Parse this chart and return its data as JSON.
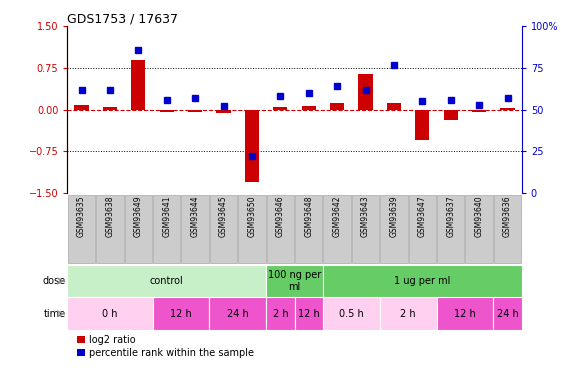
{
  "title": "GDS1753 / 17637",
  "samples": [
    "GSM93635",
    "GSM93638",
    "GSM93649",
    "GSM93641",
    "GSM93644",
    "GSM93645",
    "GSM93650",
    "GSM93646",
    "GSM93648",
    "GSM93642",
    "GSM93643",
    "GSM93639",
    "GSM93647",
    "GSM93637",
    "GSM93640",
    "GSM93636"
  ],
  "log2_ratio": [
    0.08,
    0.05,
    0.9,
    -0.05,
    -0.04,
    -0.06,
    -1.3,
    0.05,
    0.07,
    0.12,
    0.65,
    0.12,
    -0.55,
    -0.18,
    -0.05,
    0.03
  ],
  "pct_rank": [
    62,
    62,
    86,
    56,
    57,
    52,
    22,
    58,
    60,
    64,
    62,
    77,
    55,
    56,
    53,
    57
  ],
  "ylim": [
    -1.5,
    1.5
  ],
  "yticks_left": [
    -1.5,
    -0.75,
    0,
    0.75,
    1.5
  ],
  "yticks_right": [
    0,
    25,
    50,
    75,
    100
  ],
  "hlines": [
    0.75,
    -0.75
  ],
  "dose_groups": [
    {
      "label": "control",
      "start": 0,
      "end": 7,
      "color": "#C8F0C8"
    },
    {
      "label": "100 ng per\nml",
      "start": 7,
      "end": 9,
      "color": "#66CC66"
    },
    {
      "label": "1 ug per ml",
      "start": 9,
      "end": 16,
      "color": "#66CC66"
    }
  ],
  "time_groups": [
    {
      "label": "0 h",
      "start": 0,
      "end": 3,
      "color": "#FFD0F0"
    },
    {
      "label": "12 h",
      "start": 3,
      "end": 5,
      "color": "#EE55CC"
    },
    {
      "label": "24 h",
      "start": 5,
      "end": 7,
      "color": "#EE55CC"
    },
    {
      "label": "2 h",
      "start": 7,
      "end": 8,
      "color": "#EE55CC"
    },
    {
      "label": "12 h",
      "start": 8,
      "end": 9,
      "color": "#EE55CC"
    },
    {
      "label": "0.5 h",
      "start": 9,
      "end": 11,
      "color": "#FFD0F0"
    },
    {
      "label": "2 h",
      "start": 11,
      "end": 13,
      "color": "#FFD0F0"
    },
    {
      "label": "12 h",
      "start": 13,
      "end": 15,
      "color": "#EE55CC"
    },
    {
      "label": "24 h",
      "start": 15,
      "end": 16,
      "color": "#EE55CC"
    }
  ],
  "bar_color_red": "#CC0000",
  "bar_color_blue": "#0000CC",
  "legend_red": "log2 ratio",
  "legend_blue": "percentile rank within the sample",
  "dose_label": "dose",
  "time_label": "time",
  "bar_width": 0.5,
  "sample_box_color": "#CCCCCC",
  "sample_box_edge": "#999999"
}
